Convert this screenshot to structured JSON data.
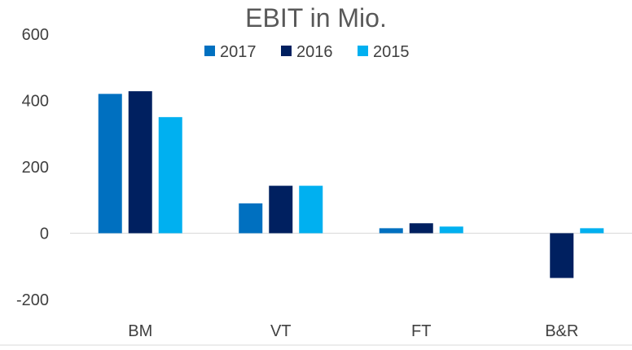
{
  "chart_data": {
    "type": "bar",
    "title": "EBIT in Mio.",
    "categories": [
      "BM",
      "VT",
      "FT",
      "B&R"
    ],
    "series": [
      {
        "name": "2017",
        "values": [
          420,
          90,
          15,
          0
        ],
        "color": "#0070C0"
      },
      {
        "name": "2016",
        "values": [
          428,
          143,
          30,
          -135
        ],
        "color": "#002060"
      },
      {
        "name": "2015",
        "values": [
          350,
          143,
          20,
          15
        ],
        "color": "#00B0F0"
      }
    ],
    "yaxis": {
      "ticks": [
        "600",
        "400",
        "200",
        "0",
        "-200"
      ],
      "tick_values": [
        600,
        400,
        200,
        0,
        -200
      ],
      "ylim": [
        -200,
        600
      ]
    },
    "grid": false,
    "legend_position": "top"
  }
}
